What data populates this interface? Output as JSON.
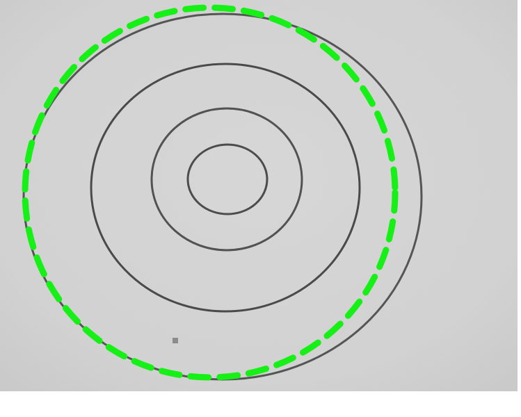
{
  "image": {
    "description_free": true,
    "colors": {
      "background": "#d3d3d3",
      "ring_stroke": "#4a4a4a",
      "fit_circle": "#16f016",
      "speck": "#8c8c8c",
      "page": "#ffffff"
    },
    "rings_count": 4,
    "overlay_style": "dashed"
  }
}
